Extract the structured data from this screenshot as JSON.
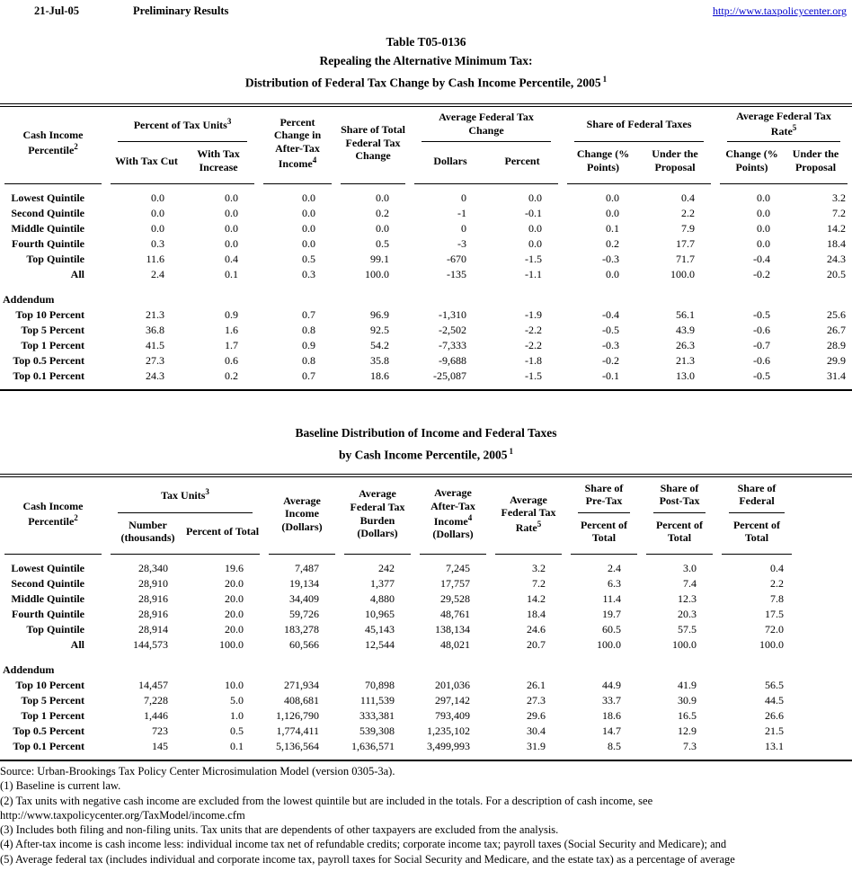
{
  "meta": {
    "date": "21-Jul-05",
    "status": "Preliminary Results",
    "link": "http://www.taxpolicycenter.org"
  },
  "table1": {
    "title1": "Table T05-0136",
    "title2": "Repealing the Alternative Minimum Tax:",
    "title3": "Distribution of Federal Tax Change by Cash Income Percentile, 2005",
    "title3_sup": "1",
    "header": {
      "percentile": {
        "label": "Cash Income Percentile",
        "sup": "2"
      },
      "tax_units": {
        "label": "Percent of Tax Units",
        "sup": "3",
        "cols": [
          "With Tax Cut",
          "With Tax Increase"
        ]
      },
      "pct_change_ati": {
        "label": "Percent Change in After-Tax Income",
        "sup": "4"
      },
      "share_total": {
        "label": "Share of Total Federal Tax Change"
      },
      "avg_change": {
        "label": "Average Federal Tax Change",
        "cols": [
          "Dollars",
          "Percent"
        ]
      },
      "share_taxes": {
        "label": "Share of Federal Taxes",
        "cols": [
          "Change (% Points)",
          "Under the Proposal"
        ]
      },
      "avg_rate": {
        "label": "Average Federal Tax Rate",
        "sup": "5",
        "cols": [
          "Change (% Points)",
          "Under the Proposal"
        ]
      }
    },
    "rows": [
      [
        "Lowest Quintile",
        "0.0",
        "0.0",
        "0.0",
        "0.0",
        "0",
        "0.0",
        "0.0",
        "0.4",
        "0.0",
        "3.2"
      ],
      [
        "Second Quintile",
        "0.0",
        "0.0",
        "0.0",
        "0.2",
        "-1",
        "-0.1",
        "0.0",
        "2.2",
        "0.0",
        "7.2"
      ],
      [
        "Middle Quintile",
        "0.0",
        "0.0",
        "0.0",
        "0.0",
        "0",
        "0.0",
        "0.1",
        "7.9",
        "0.0",
        "14.2"
      ],
      [
        "Fourth Quintile",
        "0.3",
        "0.0",
        "0.0",
        "0.5",
        "-3",
        "0.0",
        "0.2",
        "17.7",
        "0.0",
        "18.4"
      ],
      [
        "Top Quintile",
        "11.6",
        "0.4",
        "0.5",
        "99.1",
        "-670",
        "-1.5",
        "-0.3",
        "71.7",
        "-0.4",
        "24.3"
      ],
      [
        "All",
        "2.4",
        "0.1",
        "0.3",
        "100.0",
        "-135",
        "-1.1",
        "0.0",
        "100.0",
        "-0.2",
        "20.5"
      ]
    ],
    "addendum_label": "Addendum",
    "addendum_rows": [
      [
        "Top 10 Percent",
        "21.3",
        "0.9",
        "0.7",
        "96.9",
        "-1,310",
        "-1.9",
        "-0.4",
        "56.1",
        "-0.5",
        "25.6"
      ],
      [
        "Top 5 Percent",
        "36.8",
        "1.6",
        "0.8",
        "92.5",
        "-2,502",
        "-2.2",
        "-0.5",
        "43.9",
        "-0.6",
        "26.7"
      ],
      [
        "Top 1 Percent",
        "41.5",
        "1.7",
        "0.9",
        "54.2",
        "-7,333",
        "-2.2",
        "-0.3",
        "26.3",
        "-0.7",
        "28.9"
      ],
      [
        "Top 0.5 Percent",
        "27.3",
        "0.6",
        "0.8",
        "35.8",
        "-9,688",
        "-1.8",
        "-0.2",
        "21.3",
        "-0.6",
        "29.9"
      ],
      [
        "Top 0.1 Percent",
        "24.3",
        "0.2",
        "0.7",
        "18.6",
        "-25,087",
        "-1.5",
        "-0.1",
        "13.0",
        "-0.5",
        "31.4"
      ]
    ]
  },
  "table2": {
    "title1": "Baseline Distribution of Income and Federal Taxes",
    "title2": "by Cash Income Percentile, 2005",
    "title2_sup": "1",
    "header": {
      "percentile": {
        "label": "Cash Income Percentile",
        "sup": "2"
      },
      "tax_units": {
        "label": "Tax Units",
        "sup": "3",
        "cols": [
          "Number (thousands)",
          "Percent of Total"
        ]
      },
      "avg_income": {
        "label": "Average Income (Dollars)"
      },
      "avg_burden": {
        "label": "Average Federal Tax Burden (Dollars)"
      },
      "avg_ati": {
        "label": "Average After-Tax Income",
        "sup": "4",
        "post": " (Dollars)"
      },
      "avg_rate": {
        "label": "Average Federal Tax Rate",
        "sup": "5"
      },
      "share_pretax": {
        "label": "Share of Pre-Tax",
        "cols": [
          "Percent of Total"
        ]
      },
      "share_posttax": {
        "label": "Share of Post-Tax",
        "cols": [
          "Percent of Total"
        ]
      },
      "share_federal": {
        "label": "Share of Federal",
        "cols": [
          "Percent of Total"
        ]
      }
    },
    "rows": [
      [
        "Lowest Quintile",
        "28,340",
        "19.6",
        "7,487",
        "242",
        "7,245",
        "3.2",
        "2.4",
        "3.0",
        "0.4"
      ],
      [
        "Second Quintile",
        "28,910",
        "20.0",
        "19,134",
        "1,377",
        "17,757",
        "7.2",
        "6.3",
        "7.4",
        "2.2"
      ],
      [
        "Middle Quintile",
        "28,916",
        "20.0",
        "34,409",
        "4,880",
        "29,528",
        "14.2",
        "11.4",
        "12.3",
        "7.8"
      ],
      [
        "Fourth Quintile",
        "28,916",
        "20.0",
        "59,726",
        "10,965",
        "48,761",
        "18.4",
        "19.7",
        "20.3",
        "17.5"
      ],
      [
        "Top Quintile",
        "28,914",
        "20.0",
        "183,278",
        "45,143",
        "138,134",
        "24.6",
        "60.5",
        "57.5",
        "72.0"
      ],
      [
        "All",
        "144,573",
        "100.0",
        "60,566",
        "12,544",
        "48,021",
        "20.7",
        "100.0",
        "100.0",
        "100.0"
      ]
    ],
    "addendum_label": "Addendum",
    "addendum_rows": [
      [
        "Top 10 Percent",
        "14,457",
        "10.0",
        "271,934",
        "70,898",
        "201,036",
        "26.1",
        "44.9",
        "41.9",
        "56.5"
      ],
      [
        "Top 5 Percent",
        "7,228",
        "5.0",
        "408,681",
        "111,539",
        "297,142",
        "27.3",
        "33.7",
        "30.9",
        "44.5"
      ],
      [
        "Top 1 Percent",
        "1,446",
        "1.0",
        "1,126,790",
        "333,381",
        "793,409",
        "29.6",
        "18.6",
        "16.5",
        "26.6"
      ],
      [
        "Top 0.5 Percent",
        "723",
        "0.5",
        "1,774,411",
        "539,308",
        "1,235,102",
        "30.4",
        "14.7",
        "12.9",
        "21.5"
      ],
      [
        "Top 0.1 Percent",
        "145",
        "0.1",
        "5,136,564",
        "1,636,571",
        "3,499,993",
        "31.9",
        "8.5",
        "7.3",
        "13.1"
      ]
    ]
  },
  "footnotes": [
    "Source: Urban-Brookings Tax Policy Center Microsimulation Model (version 0305-3a).",
    "(1) Baseline is current law.",
    "(2) Tax units with negative cash income are excluded from the lowest quintile but are included in the totals. For a description of cash income, see",
    "http://www.taxpolicycenter.org/TaxModel/income.cfm",
    "(3) Includes both filing and non-filing units. Tax units that are dependents of other taxpayers are excluded from the analysis.",
    "(4) After-tax income is cash income less: individual income tax net of refundable credits; corporate income tax; payroll taxes (Social Security and Medicare); and",
    "(5) Average federal tax (includes individual and corporate income tax, payroll taxes for Social Security and Medicare, and the estate tax) as a percentage of average"
  ]
}
